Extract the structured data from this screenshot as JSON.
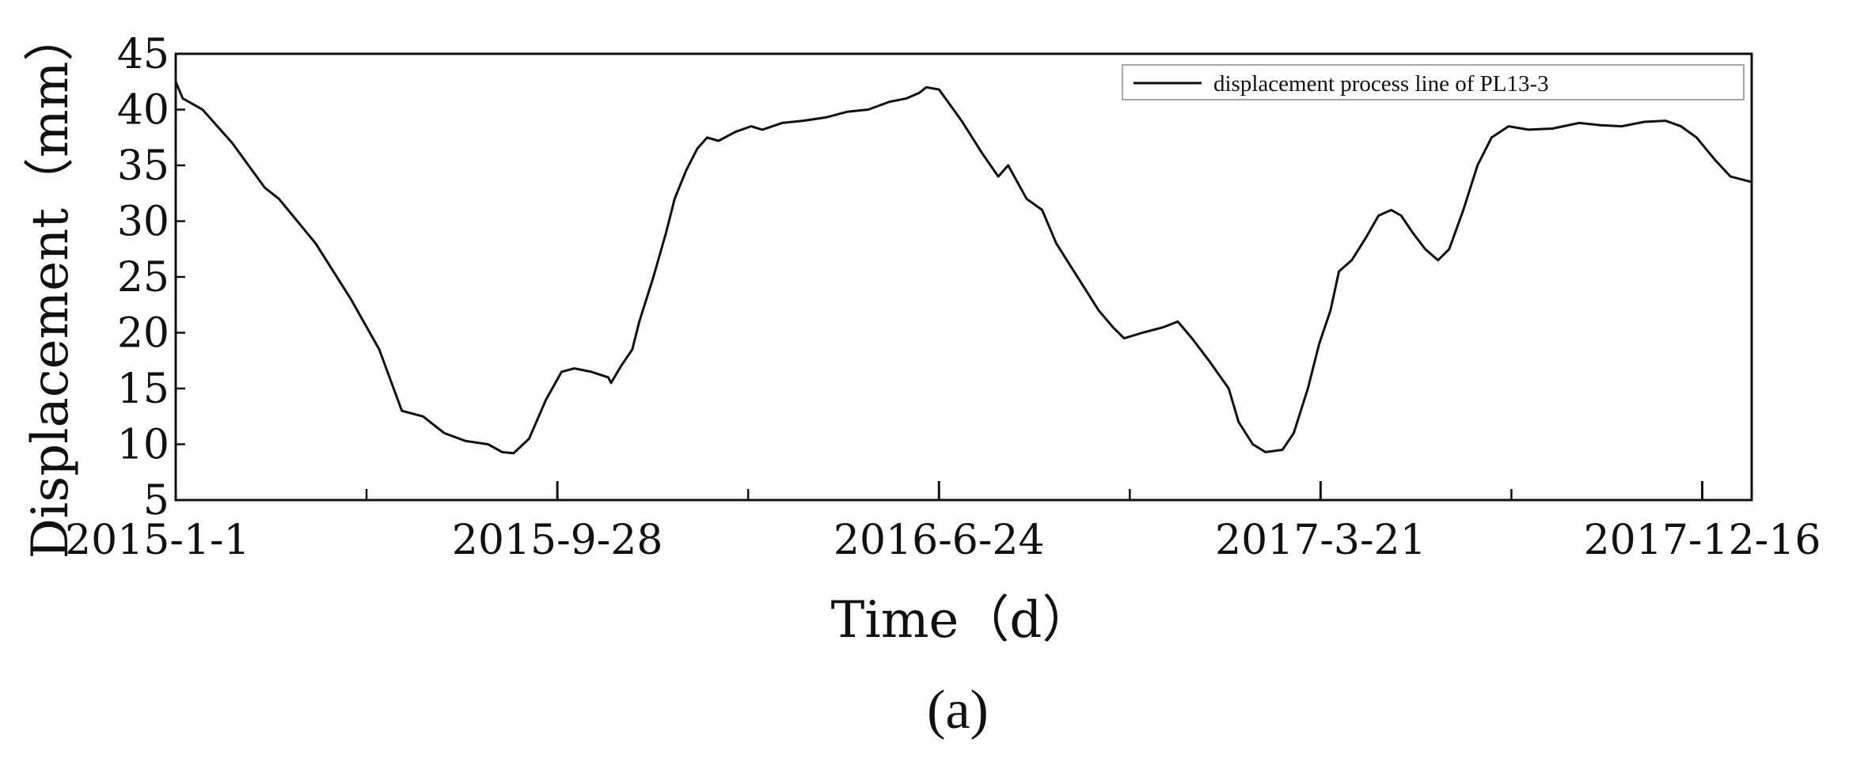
{
  "chart_data": {
    "type": "line",
    "xlabel": "Time（d）",
    "ylabel": "Displacement（mm）",
    "x_tick_labels": [
      "2015-1-1",
      "2015-9-28",
      "2016-6-24",
      "2017-3-21",
      "2017-12-16"
    ],
    "y_ticks": [
      5,
      10,
      15,
      20,
      25,
      30,
      35,
      40,
      45
    ],
    "xlim": [
      "2015-01-01",
      "2018-01-20"
    ],
    "ylim": [
      5,
      45
    ],
    "grid": false,
    "legend_position": "top-right",
    "series": [
      {
        "name": "displacement process line of PL13-3",
        "color": "#111111",
        "points": [
          [
            "2015-01-01",
            42.5
          ],
          [
            "2015-01-06",
            41.0
          ],
          [
            "2015-01-20",
            40.0
          ],
          [
            "2015-02-10",
            37.0
          ],
          [
            "2015-03-05",
            33.0
          ],
          [
            "2015-03-15",
            32.0
          ],
          [
            "2015-04-10",
            28.0
          ],
          [
            "2015-05-05",
            23.0
          ],
          [
            "2015-05-25",
            18.5
          ],
          [
            "2015-06-10",
            13.0
          ],
          [
            "2015-06-25",
            12.5
          ],
          [
            "2015-07-10",
            11.0
          ],
          [
            "2015-07-25",
            10.3
          ],
          [
            "2015-08-10",
            10.0
          ],
          [
            "2015-08-20",
            9.3
          ],
          [
            "2015-08-28",
            9.2
          ],
          [
            "2015-09-08",
            10.5
          ],
          [
            "2015-09-20",
            14.0
          ],
          [
            "2015-10-01",
            16.5
          ],
          [
            "2015-10-10",
            16.8
          ],
          [
            "2015-10-22",
            16.5
          ],
          [
            "2015-11-03",
            16.0
          ],
          [
            "2015-11-05",
            15.5
          ],
          [
            "2015-11-12",
            17.0
          ],
          [
            "2015-11-20",
            18.5
          ],
          [
            "2015-11-25",
            21.0
          ],
          [
            "2015-12-05",
            25.0
          ],
          [
            "2015-12-14",
            29.0
          ],
          [
            "2015-12-20",
            32.0
          ],
          [
            "2015-12-28",
            34.5
          ],
          [
            "2016-01-05",
            36.5
          ],
          [
            "2016-01-12",
            37.5
          ],
          [
            "2016-01-20",
            37.2
          ],
          [
            "2016-02-01",
            38.0
          ],
          [
            "2016-02-12",
            38.5
          ],
          [
            "2016-02-20",
            38.2
          ],
          [
            "2016-03-05",
            38.8
          ],
          [
            "2016-03-20",
            39.0
          ],
          [
            "2016-04-05",
            39.3
          ],
          [
            "2016-04-20",
            39.8
          ],
          [
            "2016-05-05",
            40.0
          ],
          [
            "2016-05-20",
            40.7
          ],
          [
            "2016-06-01",
            41.0
          ],
          [
            "2016-06-10",
            41.5
          ],
          [
            "2016-06-15",
            42.0
          ],
          [
            "2016-06-24",
            41.8
          ],
          [
            "2016-07-10",
            39.0
          ],
          [
            "2016-07-25",
            36.0
          ],
          [
            "2016-08-05",
            34.0
          ],
          [
            "2016-08-12",
            35.0
          ],
          [
            "2016-08-25",
            32.0
          ],
          [
            "2016-09-05",
            31.0
          ],
          [
            "2016-09-15",
            28.0
          ],
          [
            "2016-09-25",
            26.0
          ],
          [
            "2016-10-05",
            24.0
          ],
          [
            "2016-10-15",
            22.0
          ],
          [
            "2016-10-25",
            20.5
          ],
          [
            "2016-11-02",
            19.5
          ],
          [
            "2016-11-15",
            20.0
          ],
          [
            "2016-11-30",
            20.5
          ],
          [
            "2016-12-10",
            21.0
          ],
          [
            "2016-12-20",
            19.5
          ],
          [
            "2017-01-01",
            17.5
          ],
          [
            "2017-01-15",
            15.0
          ],
          [
            "2017-01-22",
            12.0
          ],
          [
            "2017-02-01",
            10.0
          ],
          [
            "2017-02-10",
            9.3
          ],
          [
            "2017-02-22",
            9.5
          ],
          [
            "2017-03-02",
            11.0
          ],
          [
            "2017-03-12",
            15.0
          ],
          [
            "2017-03-20",
            19.0
          ],
          [
            "2017-03-28",
            22.0
          ],
          [
            "2017-04-03",
            25.5
          ],
          [
            "2017-04-12",
            26.5
          ],
          [
            "2017-04-22",
            28.5
          ],
          [
            "2017-05-01",
            30.5
          ],
          [
            "2017-05-10",
            31.0
          ],
          [
            "2017-05-17",
            30.5
          ],
          [
            "2017-05-25",
            29.0
          ],
          [
            "2017-06-03",
            27.5
          ],
          [
            "2017-06-12",
            26.5
          ],
          [
            "2017-06-20",
            27.5
          ],
          [
            "2017-06-30",
            31.0
          ],
          [
            "2017-07-10",
            35.0
          ],
          [
            "2017-07-20",
            37.5
          ],
          [
            "2017-08-01",
            38.5
          ],
          [
            "2017-08-15",
            38.2
          ],
          [
            "2017-09-01",
            38.3
          ],
          [
            "2017-09-20",
            38.8
          ],
          [
            "2017-10-05",
            38.6
          ],
          [
            "2017-10-20",
            38.5
          ],
          [
            "2017-11-05",
            38.9
          ],
          [
            "2017-11-20",
            39.0
          ],
          [
            "2017-12-01",
            38.5
          ],
          [
            "2017-12-12",
            37.5
          ],
          [
            "2017-12-25",
            35.5
          ],
          [
            "2018-01-05",
            34.0
          ],
          [
            "2018-01-20",
            33.5
          ]
        ]
      }
    ],
    "annotations": []
  },
  "caption": "(a)"
}
